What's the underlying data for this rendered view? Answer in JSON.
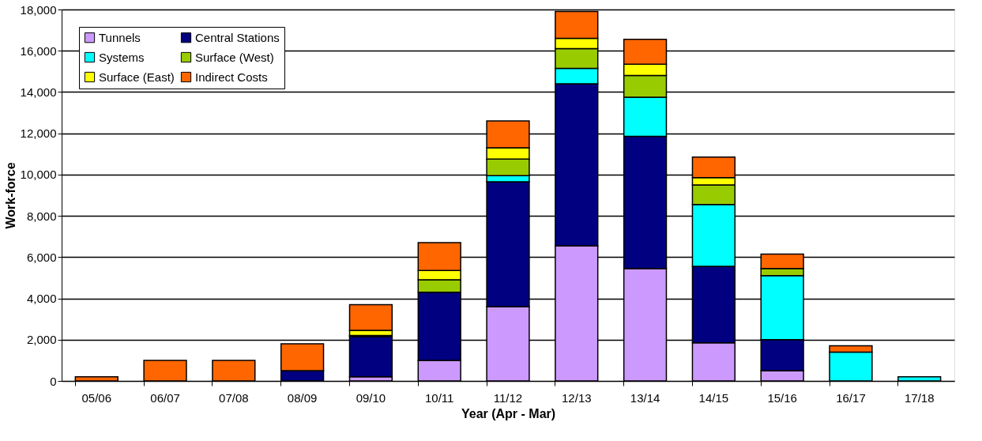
{
  "chart_data": {
    "type": "bar",
    "stacked": true,
    "xlabel": "Year (Apr - Mar)",
    "ylabel": "Work-force",
    "categories": [
      "05/06",
      "06/07",
      "07/08",
      "08/09",
      "09/10",
      "10/11",
      "11/12",
      "12/13",
      "13/14",
      "14/15",
      "15/16",
      "16/17",
      "17/18"
    ],
    "series": [
      {
        "name": "Tunnels",
        "color": "#cc99ff",
        "values": [
          null,
          null,
          null,
          null,
          200,
          1000,
          3600,
          6550,
          5450,
          1850,
          500,
          null,
          null
        ]
      },
      {
        "name": "Central Stations",
        "color": "#000080",
        "values": [
          null,
          null,
          null,
          500,
          1950,
          3300,
          6050,
          7850,
          6400,
          3700,
          1500,
          null,
          null
        ]
      },
      {
        "name": "Systems",
        "color": "#00ffff",
        "values": [
          null,
          null,
          null,
          null,
          50,
          null,
          300,
          750,
          1900,
          3000,
          3100,
          1400,
          200
        ]
      },
      {
        "name": "Surface (West)",
        "color": "#99cc00",
        "values": [
          null,
          null,
          null,
          null,
          null,
          600,
          800,
          950,
          1050,
          950,
          350,
          null,
          null
        ]
      },
      {
        "name": "Surface (East)",
        "color": "#ffff00",
        "values": [
          null,
          null,
          null,
          null,
          250,
          450,
          550,
          500,
          550,
          350,
          null,
          null,
          null
        ]
      },
      {
        "name": "Indirect Costs",
        "color": "#ff6600",
        "values": [
          200,
          1000,
          1000,
          1300,
          1250,
          1350,
          1300,
          1300,
          1200,
          1000,
          700,
          300,
          null
        ]
      }
    ],
    "ylim": [
      0,
      18000
    ],
    "yticks": [
      0,
      {
        "value": 2000,
        "label": "2,000"
      },
      {
        "value": 4000,
        "label": "4,000"
      },
      {
        "value": 6000,
        "label": "6,000"
      },
      {
        "value": 8000,
        "label": "8,000"
      },
      {
        "value": 10000,
        "label": "10,000"
      },
      {
        "value": 12000,
        "label": "12,000"
      },
      {
        "value": 14000,
        "label": "14,000"
      },
      {
        "value": 16000,
        "label": "16,000"
      },
      {
        "value": 18000,
        "label": "18,000"
      }
    ],
    "grid": "y",
    "legend": "top left"
  }
}
